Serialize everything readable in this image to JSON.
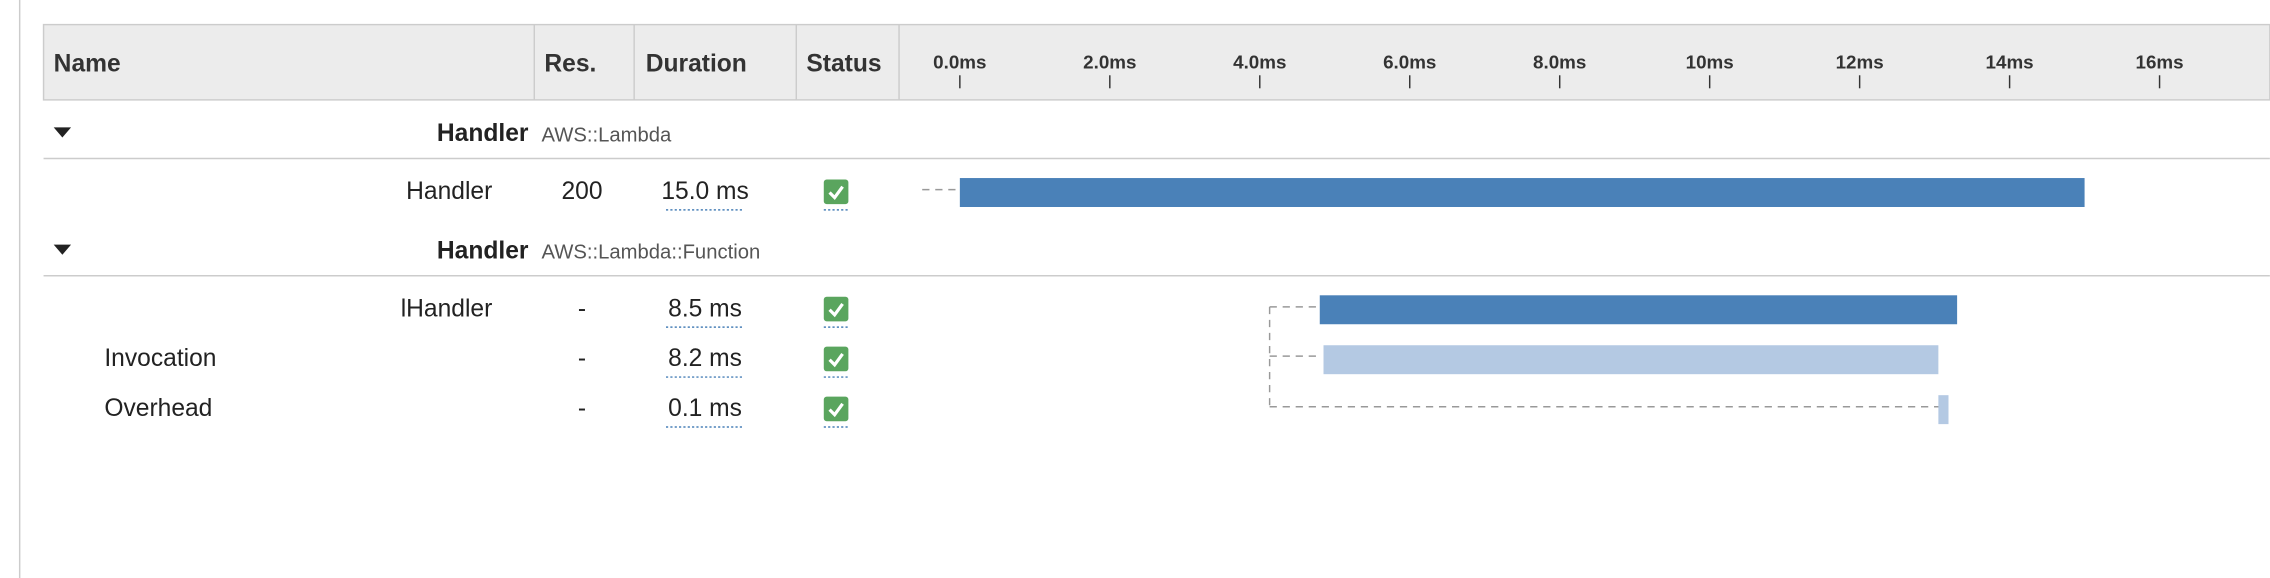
{
  "header": {
    "columns": [
      "Name",
      "Res.",
      "Duration",
      "Status"
    ]
  },
  "timeline": {
    "xlim": [
      0,
      17
    ],
    "ticks": [
      {
        "value": 0,
        "label": "0.0ms"
      },
      {
        "value": 2,
        "label": "2.0ms"
      },
      {
        "value": 4,
        "label": "4.0ms"
      },
      {
        "value": 6,
        "label": "6.0ms"
      },
      {
        "value": 8,
        "label": "8.0ms"
      },
      {
        "value": 10,
        "label": "10ms"
      },
      {
        "value": 12,
        "label": "12ms"
      },
      {
        "value": 14,
        "label": "14ms"
      },
      {
        "value": 16,
        "label": "16ms"
      }
    ]
  },
  "groups": [
    {
      "name": "Handler",
      "type": "AWS::Lambda",
      "rows": [
        {
          "name": "Handler",
          "response": "200",
          "start": 0,
          "duration": 15.0,
          "duration_label": "15.0 ms",
          "color": "#4a81b8"
        }
      ]
    },
    {
      "name": "Handler",
      "type": "AWS::Lambda::Function",
      "rows": [
        {
          "name": "lHandler",
          "response": "-",
          "start": 4.8,
          "duration": 8.5,
          "duration_label": "8.5 ms",
          "color": "#4a81b8"
        },
        {
          "name": "Invocation",
          "response": "-",
          "start": 4.85,
          "duration": 8.2,
          "duration_label": "8.2 ms",
          "color": "#b4c9e3"
        },
        {
          "name": "Overhead",
          "response": "-",
          "start": 13.05,
          "duration": 0.1,
          "duration_label": "0.1 ms",
          "color": "#b4c9e3"
        }
      ]
    }
  ]
}
